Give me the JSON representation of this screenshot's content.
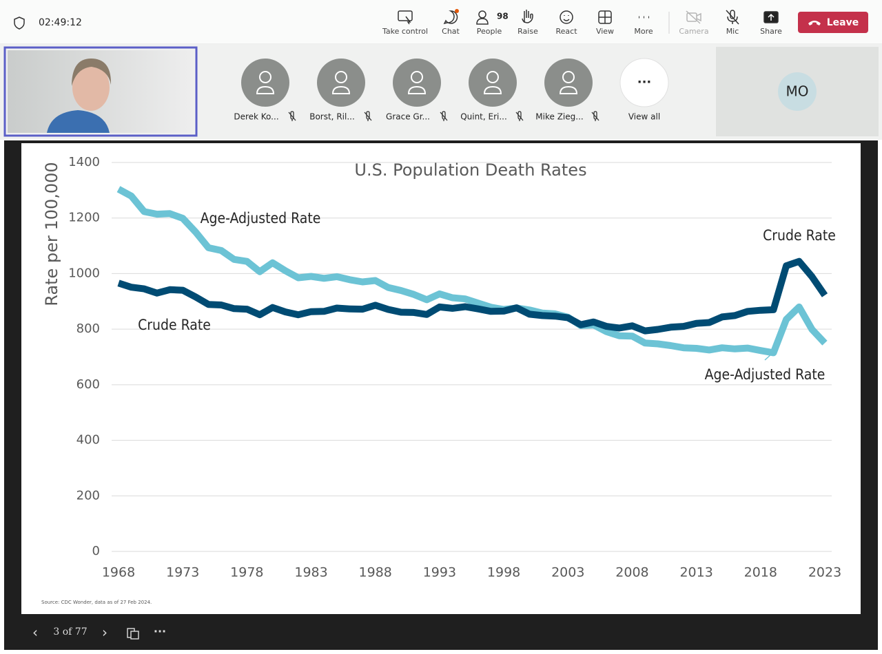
{
  "toolbar": {
    "timer": "02:49:12",
    "buttons": [
      "Take control",
      "Chat",
      "People",
      "Raise",
      "React",
      "View",
      "More",
      "Camera",
      "Mic",
      "Share"
    ],
    "people_count": 98,
    "leave": "Leave"
  },
  "participants": [
    "Derek Ko...",
    "Borst, Ril...",
    "Grace Gr...",
    "Quint, Eri...",
    "Mike Zieg..."
  ],
  "view_all": "View all",
  "self_tile": "MO",
  "presentation": {
    "page": "3 of 77"
  },
  "chart_data": {
    "type": "line",
    "title": "U.S. Population Death Rates",
    "y_label": "Rate per 100,000",
    "source": "Source: CDC Wonder, data as of 27 Feb 2024.",
    "x": [
      1968,
      1969,
      1970,
      1971,
      1972,
      1973,
      1974,
      1975,
      1976,
      1977,
      1978,
      1979,
      1980,
      1981,
      1982,
      1983,
      1984,
      1985,
      1986,
      1987,
      1988,
      1989,
      1990,
      1991,
      1992,
      1993,
      1994,
      1995,
      1996,
      1997,
      1998,
      1999,
      2000,
      2001,
      2002,
      2003,
      2004,
      2005,
      2006,
      2007,
      2008,
      2009,
      2010,
      2011,
      2012,
      2013,
      2014,
      2015,
      2016,
      2017,
      2018,
      2019,
      2020,
      2021,
      2022,
      2023
    ],
    "xlim": [
      1968,
      2023
    ],
    "xticks": [
      1968,
      1973,
      1978,
      1983,
      1988,
      1993,
      1998,
      2003,
      2008,
      2013,
      2018,
      2023
    ],
    "ylim": [
      0,
      1400
    ],
    "yticks": [
      0,
      200,
      400,
      600,
      800,
      1000,
      1200,
      1400
    ],
    "grid": true,
    "series": [
      {
        "name": "Crude Rate",
        "color": "#004b73",
        "values": [
          966,
          951,
          945,
          930,
          942,
          940,
          916,
          889,
          887,
          874,
          872,
          852,
          878,
          862,
          852,
          863,
          864,
          876,
          873,
          872,
          886,
          871,
          861,
          860,
          853,
          880,
          875,
          881,
          873,
          864,
          865,
          877,
          854,
          849,
          847,
          841,
          816,
          826,
          810,
          804,
          812,
          794,
          799,
          807,
          810,
          821,
          824,
          844,
          849,
          864,
          868,
          870,
          1028,
          1044,
          989,
          922
        ]
      },
      {
        "name": "Age-Adjusted Rate",
        "color": "#6cc3d5",
        "values": [
          1304,
          1279,
          1223,
          1214,
          1216,
          1199,
          1150,
          1093,
          1083,
          1051,
          1044,
          1007,
          1039,
          1010,
          985,
          990,
          983,
          989,
          978,
          970,
          975,
          950,
          939,
          925,
          906,
          927,
          913,
          909,
          894,
          879,
          871,
          876,
          869,
          858,
          855,
          843,
          813,
          815,
          791,
          776,
          775,
          750,
          747,
          741,
          733,
          731,
          725,
          733,
          729,
          732,
          723,
          715,
          835,
          880,
          799,
          750
        ]
      }
    ]
  }
}
